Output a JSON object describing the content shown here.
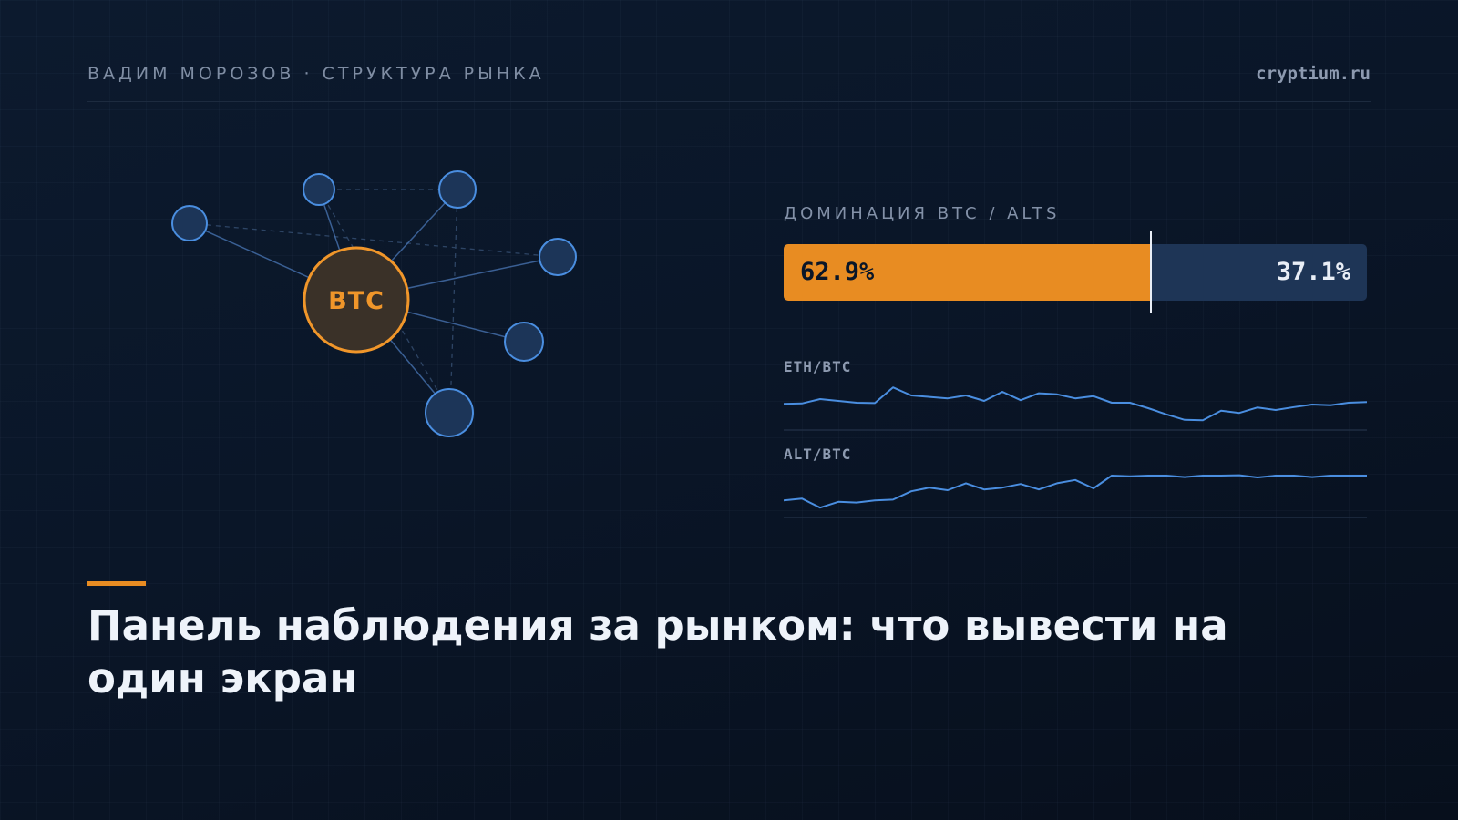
{
  "header": {
    "author": "ВАДИМ МОРОЗОВ · СТРУКТУРА РЫНКА",
    "site": "cryptium.ru"
  },
  "network": {
    "center_label": "BTC",
    "center_color": "#e88c22",
    "node_color": "#4a8ee0"
  },
  "dominance": {
    "label": "ДОМИНАЦИЯ BTC / ALTS",
    "btc_value": "62.9%",
    "alts_value": "37.1%",
    "btc_share": 0.629,
    "btc_color": "#e88c22",
    "alts_color": "#1e3556"
  },
  "sparklines": [
    {
      "label": "ETH/BTC",
      "color": "#4a8ee0",
      "values": [
        0.47,
        0.48,
        0.6,
        0.55,
        0.5,
        0.49,
        0.92,
        0.7,
        0.66,
        0.62,
        0.7,
        0.55,
        0.8,
        0.57,
        0.76,
        0.73,
        0.62,
        0.68,
        0.5,
        0.5,
        0.35,
        0.18,
        0.03,
        0.02,
        0.28,
        0.22,
        0.37,
        0.3,
        0.38,
        0.45,
        0.43,
        0.5,
        0.52
      ]
    },
    {
      "label": "ALT/BTC",
      "color": "#4a8ee0",
      "values": [
        0.22,
        0.27,
        0.02,
        0.18,
        0.16,
        0.22,
        0.24,
        0.47,
        0.57,
        0.5,
        0.69,
        0.52,
        0.57,
        0.67,
        0.52,
        0.69,
        0.78,
        0.55,
        0.9,
        0.88,
        0.9,
        0.9,
        0.86,
        0.9,
        0.9,
        0.91,
        0.85,
        0.9,
        0.9,
        0.86,
        0.9,
        0.9,
        0.9
      ]
    }
  ],
  "title": "Панель наблюдения за рынком: что вывести на один экран",
  "accent_color": "#e88c22"
}
